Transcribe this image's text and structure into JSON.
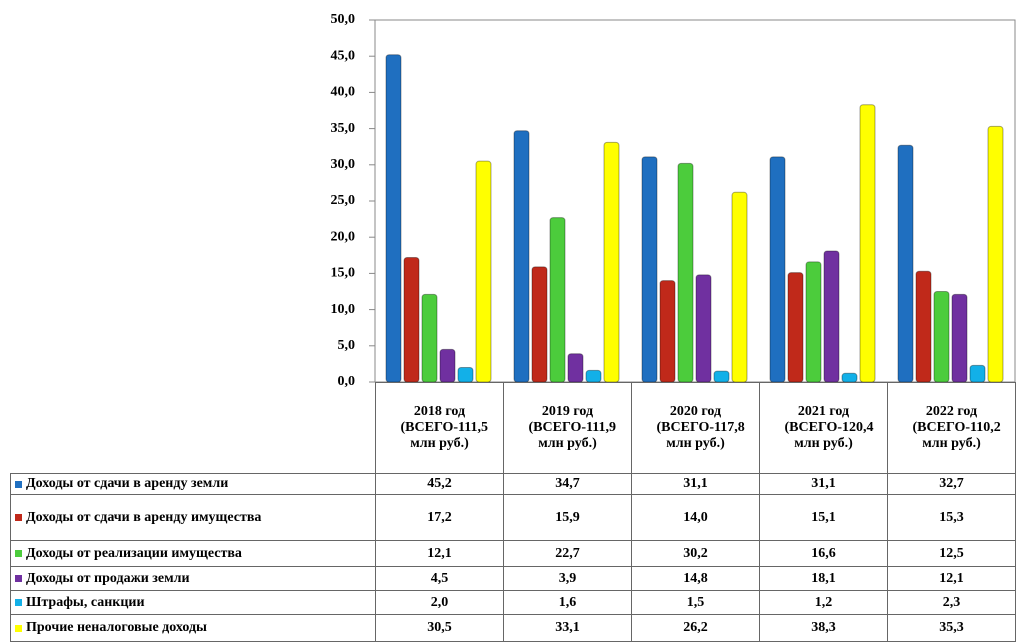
{
  "chart_data": {
    "type": "bar",
    "categories": [
      "2018 год (ВСЕГО-111,5 млн руб.)",
      "2019 год (ВСЕГО-111,9 млн руб.)",
      "2020 год (ВСЕГО-117,8 млн руб.)",
      "2021 год (ВСЕГО-120,4 млн руб.)",
      "2022 год (ВСЕГО-110,2 млн руб.)"
    ],
    "series": [
      {
        "name": "Доходы от сдачи в аренду земли",
        "color": "#1f6fc0",
        "values": [
          45.2,
          34.7,
          31.1,
          31.1,
          32.7
        ],
        "value_labels": [
          "45,2",
          "34,7",
          "31,1",
          "31,1",
          "32,7"
        ]
      },
      {
        "name": "Доходы от сдачи в аренду имущества",
        "color": "#c0291a",
        "values": [
          17.2,
          15.9,
          14.0,
          15.1,
          15.3
        ],
        "value_labels": [
          "17,2",
          "15,9",
          "14,0",
          "15,1",
          "15,3"
        ]
      },
      {
        "name": "Доходы от реализации имущества",
        "color": "#4ccc3c",
        "values": [
          12.1,
          22.7,
          30.2,
          16.6,
          12.5
        ],
        "value_labels": [
          "12,1",
          "22,7",
          "30,2",
          "16,6",
          "12,5"
        ]
      },
      {
        "name": "Доходы от продажи земли",
        "color": "#7030a0",
        "values": [
          4.5,
          3.9,
          14.8,
          18.1,
          12.1
        ],
        "value_labels": [
          "4,5",
          "3,9",
          "14,8",
          "18,1",
          "12,1"
        ]
      },
      {
        "name": "Штрафы, санкции",
        "color": "#12b0e8",
        "values": [
          2.0,
          1.6,
          1.5,
          1.2,
          2.3
        ],
        "value_labels": [
          "2,0",
          "1,6",
          "1,5",
          "1,2",
          "2,3"
        ]
      },
      {
        "name": "Прочие неналоговые доходы",
        "color": "#ffff00",
        "values": [
          30.5,
          33.1,
          26.2,
          38.3,
          35.3
        ],
        "value_labels": [
          "30,5",
          "33,1",
          "26,2",
          "38,3",
          "35,3"
        ]
      }
    ],
    "ylim": [
      0,
      50
    ],
    "yticks": [
      {
        "value": 0,
        "label": "0,0"
      },
      {
        "value": 5,
        "label": "5,0"
      },
      {
        "value": 10,
        "label": "10,0"
      },
      {
        "value": 15,
        "label": "15,0"
      },
      {
        "value": 20,
        "label": "20,0"
      },
      {
        "value": 25,
        "label": "25,0"
      },
      {
        "value": 30,
        "label": "30,0"
      },
      {
        "value": 35,
        "label": "35,0"
      },
      {
        "value": 40,
        "label": "40,0"
      },
      {
        "value": 45,
        "label": "45,0"
      },
      {
        "value": 50,
        "label": "50,0"
      }
    ],
    "grid": false
  }
}
